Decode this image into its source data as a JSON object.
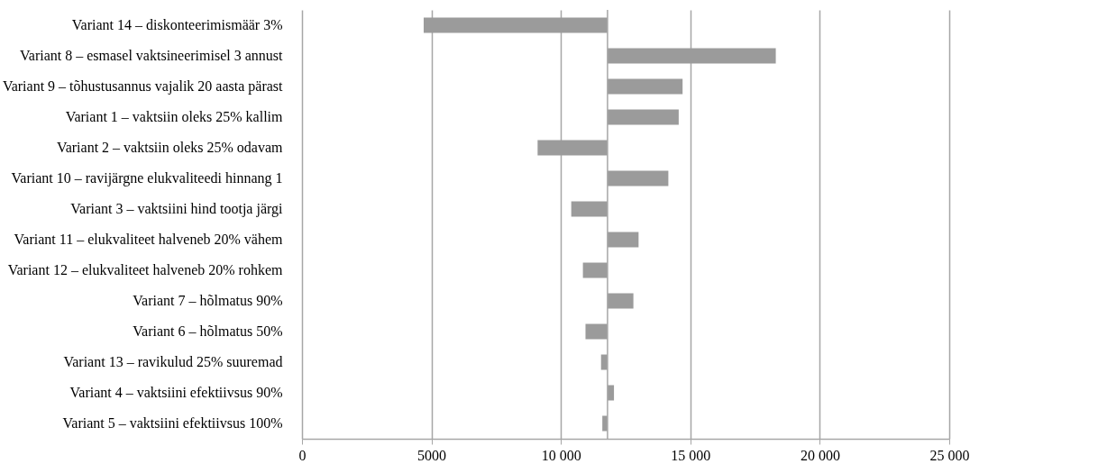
{
  "chart_data": {
    "type": "bar",
    "orientation": "horizontal",
    "categories": [
      "Variant 14 – diskonteerimismäär 3%",
      "Variant 8 – esmasel vaktsineerimisel 3 annust",
      "Variant 9 – tõhustusannus vajalik 20 aasta pärast",
      "Variant 1 – vaktsiin oleks 25% kallim",
      "Variant 2 – vaktsiin oleks 25% odavam",
      "Variant 10 – ravijärgne elukvaliteedi hinnang 1",
      "Variant 3 – vaktsiini hind tootja järgi",
      "Variant 11 – elukvaliteet halveneb 20% vähem",
      "Variant 12 – elukvaliteet halveneb 20% rohkem",
      "Variant 7 – hõlmatus 90%",
      "Variant 6 – hõlmatus 50%",
      "Variant 13 – ravikulud 25% suuremad",
      "Variant 4 – vaktsiini efektiivsus 90%",
      "Variant 5 – vaktsiini efektiivsus 100%"
    ],
    "base": [
      11800,
      11800,
      11800,
      11800,
      11800,
      11800,
      11800,
      11800,
      11800,
      11800,
      11800,
      11800,
      11800,
      11800
    ],
    "values": [
      -7100,
      6500,
      2900,
      2750,
      -2700,
      2350,
      -1400,
      1200,
      -950,
      1000,
      -850,
      -250,
      250,
      -200
    ],
    "color": "#9b9b9b",
    "xlim": [
      0,
      25000
    ],
    "xticks": [
      0,
      {
        "value": 5000,
        "label": "5000"
      },
      {
        "value": 10000,
        "label": "10 000"
      },
      {
        "value": 15000,
        "label": "15 000"
      },
      {
        "value": 20000,
        "label": "20 000"
      },
      {
        "value": 25000,
        "label": "25 000"
      }
    ],
    "grid": "x"
  }
}
